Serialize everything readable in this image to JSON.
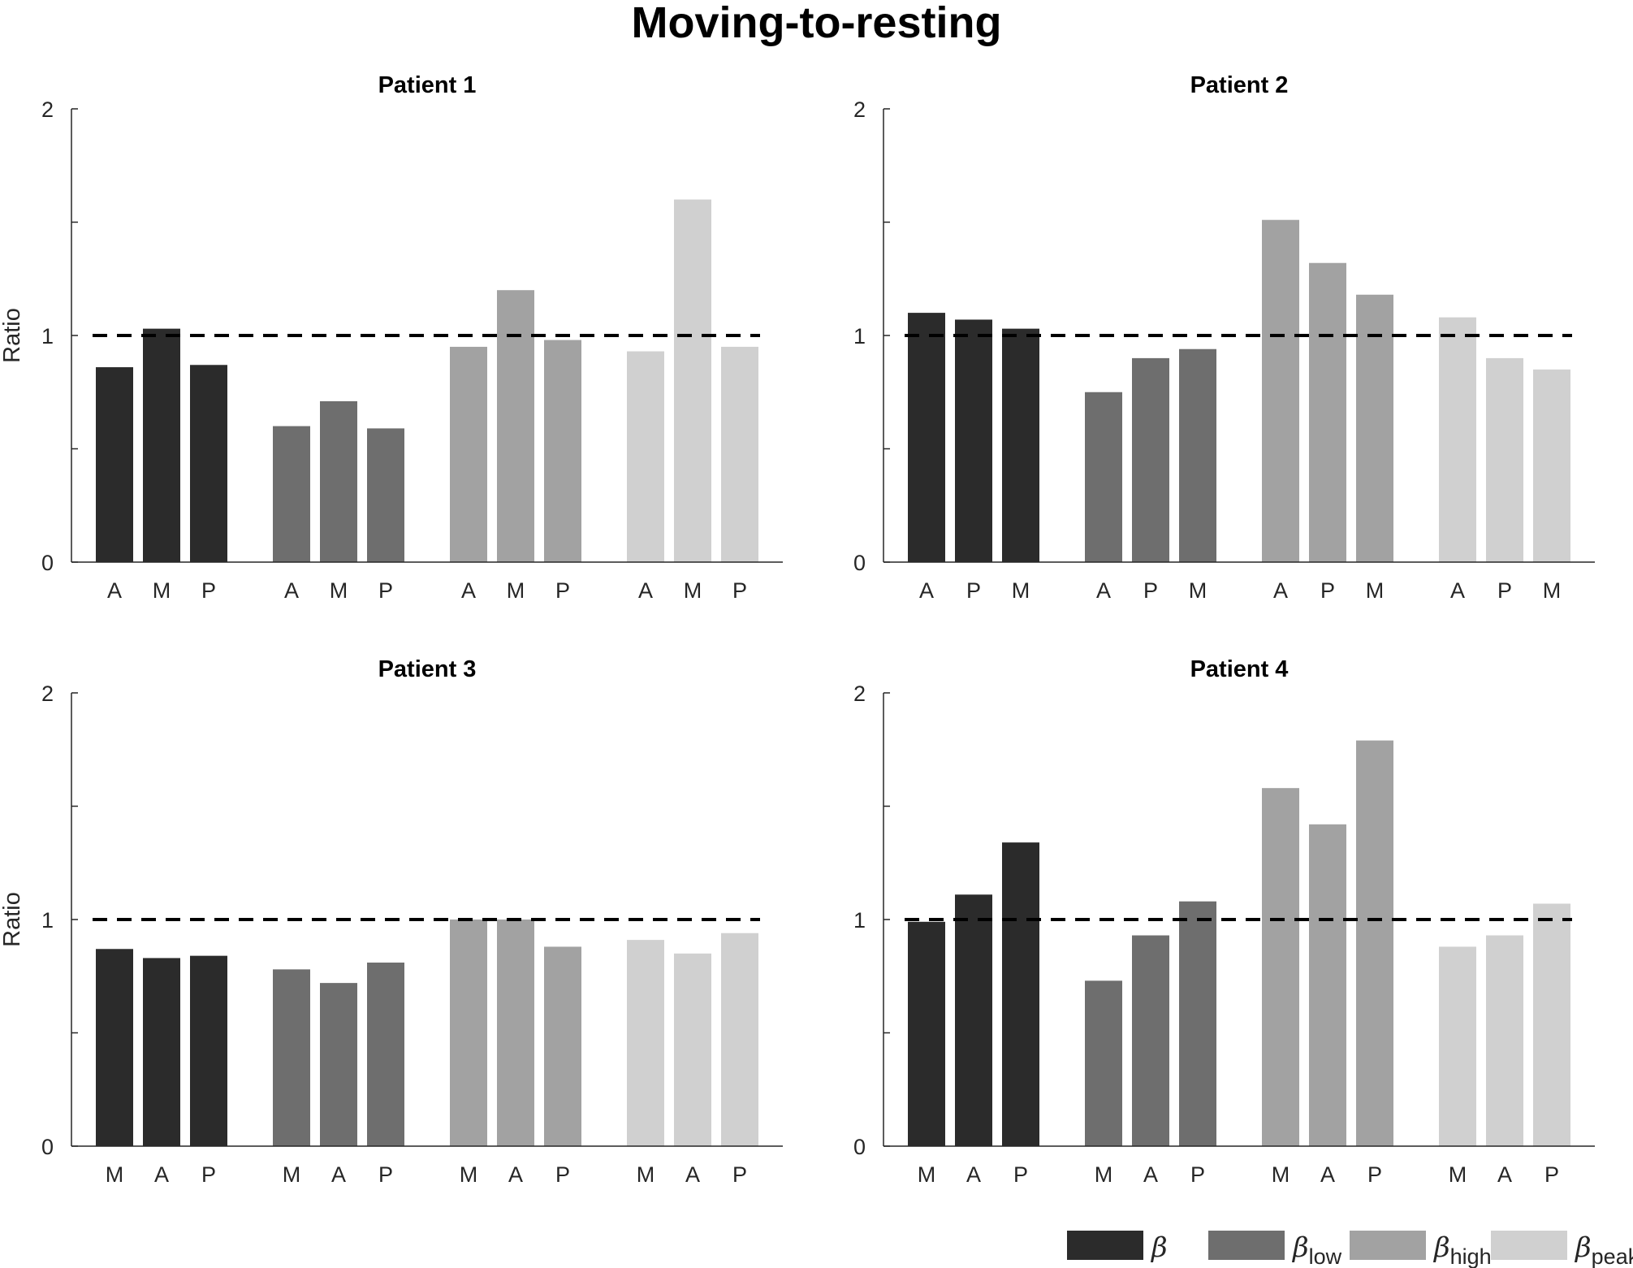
{
  "title": "Moving-to-resting",
  "colors": {
    "beta": "#2b2b2b",
    "beta_low": "#6e6e6e",
    "beta_high": "#a2a2a2",
    "beta_peak": "#d0d0d0",
    "axis": "#262626",
    "reference": "#000000"
  },
  "legend": [
    {
      "symbol": "β",
      "sub": "",
      "color": "#2b2b2b"
    },
    {
      "symbol": "β",
      "sub": "low",
      "color": "#6e6e6e"
    },
    {
      "symbol": "β",
      "sub": "high",
      "color": "#a2a2a2"
    },
    {
      "symbol": "β",
      "sub": "peak",
      "color": "#d0d0d0"
    }
  ],
  "chart_data": [
    {
      "type": "bar",
      "title": "Patient 1",
      "ylabel": "Ratio",
      "ylim": [
        0,
        2
      ],
      "yticks": [
        "0",
        "1",
        "2"
      ],
      "reference_line": 1,
      "groups": [
        {
          "name": "β",
          "labels": [
            "A",
            "M",
            "P"
          ],
          "values": [
            0.86,
            1.03,
            0.87
          ]
        },
        {
          "name": "β low",
          "labels": [
            "A",
            "M",
            "P"
          ],
          "values": [
            0.6,
            0.71,
            0.59
          ]
        },
        {
          "name": "β high",
          "labels": [
            "A",
            "M",
            "P"
          ],
          "values": [
            0.95,
            1.2,
            0.98
          ]
        },
        {
          "name": "β peak",
          "labels": [
            "A",
            "M",
            "P"
          ],
          "values": [
            0.93,
            1.6,
            0.95
          ]
        }
      ]
    },
    {
      "type": "bar",
      "title": "Patient 2",
      "ylabel": "",
      "ylim": [
        0,
        2
      ],
      "yticks": [
        "0",
        "1",
        "2"
      ],
      "reference_line": 1,
      "groups": [
        {
          "name": "β",
          "labels": [
            "A",
            "P",
            "M"
          ],
          "values": [
            1.1,
            1.07,
            1.03
          ]
        },
        {
          "name": "β low",
          "labels": [
            "A",
            "P",
            "M"
          ],
          "values": [
            0.75,
            0.9,
            0.94
          ]
        },
        {
          "name": "β high",
          "labels": [
            "A",
            "P",
            "M"
          ],
          "values": [
            1.51,
            1.32,
            1.18
          ]
        },
        {
          "name": "β peak",
          "labels": [
            "A",
            "P",
            "M"
          ],
          "values": [
            1.08,
            0.9,
            0.85
          ]
        }
      ]
    },
    {
      "type": "bar",
      "title": "Patient 3",
      "ylabel": "Ratio",
      "ylim": [
        0,
        2
      ],
      "yticks": [
        "0",
        "1",
        "2"
      ],
      "reference_line": 1,
      "groups": [
        {
          "name": "β",
          "labels": [
            "M",
            "A",
            "P"
          ],
          "values": [
            0.87,
            0.83,
            0.84
          ]
        },
        {
          "name": "β low",
          "labels": [
            "M",
            "A",
            "P"
          ],
          "values": [
            0.78,
            0.72,
            0.81
          ]
        },
        {
          "name": "β high",
          "labels": [
            "M",
            "A",
            "P"
          ],
          "values": [
            1.0,
            1.0,
            0.88
          ]
        },
        {
          "name": "β peak",
          "labels": [
            "M",
            "A",
            "P"
          ],
          "values": [
            0.91,
            0.85,
            0.94
          ]
        }
      ]
    },
    {
      "type": "bar",
      "title": "Patient 4",
      "ylabel": "",
      "ylim": [
        0,
        2
      ],
      "yticks": [
        "0",
        "1",
        "2"
      ],
      "reference_line": 1,
      "groups": [
        {
          "name": "β",
          "labels": [
            "M",
            "A",
            "P"
          ],
          "values": [
            0.99,
            1.11,
            1.34
          ]
        },
        {
          "name": "β low",
          "labels": [
            "M",
            "A",
            "P"
          ],
          "values": [
            0.73,
            0.93,
            1.08
          ]
        },
        {
          "name": "β high",
          "labels": [
            "M",
            "A",
            "P"
          ],
          "values": [
            1.58,
            1.42,
            1.79
          ]
        },
        {
          "name": "β peak",
          "labels": [
            "M",
            "A",
            "P"
          ],
          "values": [
            0.88,
            0.93,
            1.07
          ]
        }
      ]
    }
  ]
}
